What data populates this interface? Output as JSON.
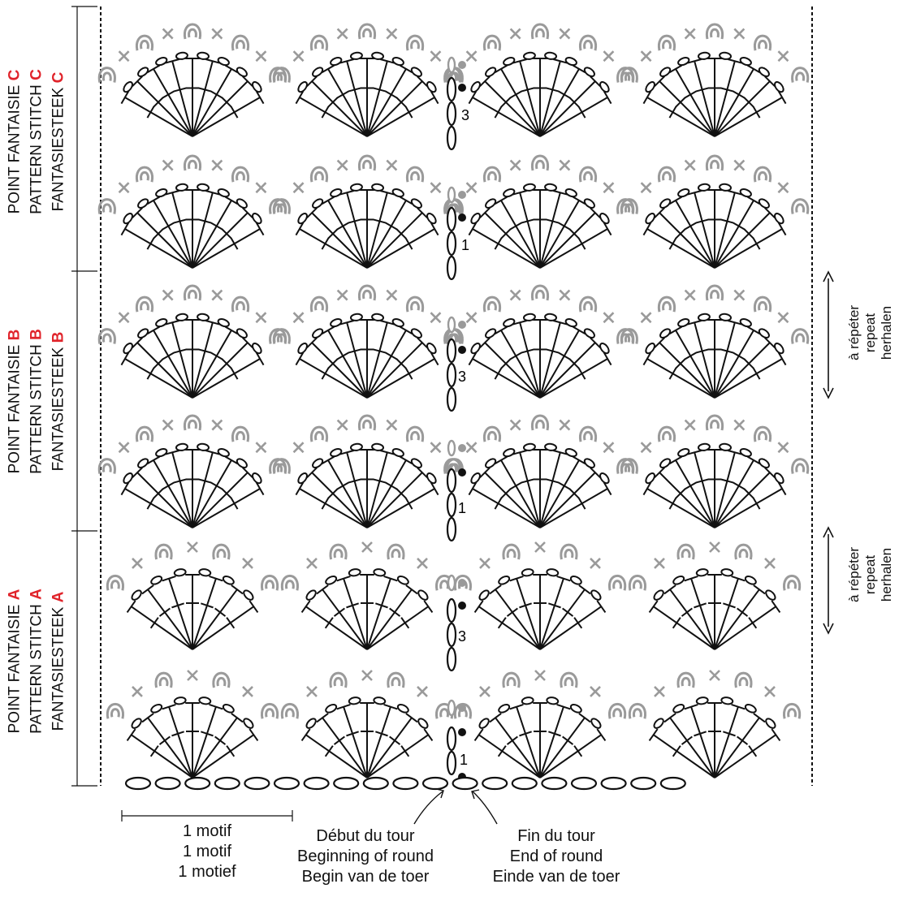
{
  "sections": [
    {
      "line1": "POINT FANTAISIE",
      "line2": "PATTERN STITCH",
      "line3": "FANTASIESTEEK",
      "letter": "C"
    },
    {
      "line1": "POINT FANTAISIE",
      "line2": "PATTERN STITCH",
      "line3": "FANTASIESTEEK",
      "letter": "B"
    },
    {
      "line1": "POINT FANTAISIE",
      "line2": "PATTERN STITCH",
      "line3": "FANTASIESTEEK",
      "letter": "A"
    }
  ],
  "repeat_labels": [
    {
      "fr": "à répéter",
      "en": "repeat",
      "nl": "herhalen"
    },
    {
      "fr": "à répéter",
      "en": "repeat",
      "nl": "herhalen"
    }
  ],
  "round_numbers": [
    "3",
    "1",
    "3",
    "1",
    "3",
    "1"
  ],
  "captions": {
    "motif": {
      "fr": "1 motif",
      "en": "1 motif",
      "nl": "1 motief"
    },
    "start": {
      "fr": "Début du tour",
      "en": "Beginning of round",
      "nl": "Begin van de toer"
    },
    "end": {
      "fr": "Fin du tour",
      "en": "End of round",
      "nl": "Einde van de toer"
    }
  },
  "colors": {
    "stitch": "#111111",
    "previous_round": "#9a9a9a",
    "highlight": "#e0242b"
  }
}
